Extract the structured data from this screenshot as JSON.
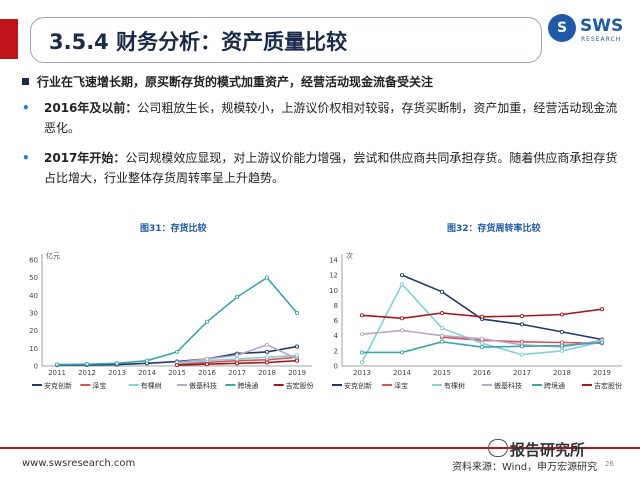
{
  "header": {
    "title": "3.5.4 财务分析：资产质量比较",
    "logo_text": "SWS",
    "logo_sub": "RESEARCH"
  },
  "bullets": {
    "headline": "行业在飞速增长期，原买断存货的模式加重资产，经营活动现金流备受关注",
    "item1_lead": "2016年及以前：",
    "item1_text": "公司粗放生长，规模较小，上游议价权相对较弱，存货买断制，资产加重，经营活动现金流恶化。",
    "item2_lead": "2017年开始：",
    "item2_text": "公司规模效应显现，对上游议价能力增强，尝试和供应商共同承担存货。随着供应商承担存货占比增大，行业整体存货周转率呈上升趋势。"
  },
  "colors": {
    "安克创新": "#1f3a68",
    "泽宝": "#d9534f",
    "有棵树": "#7fd3d8",
    "傲基科技": "#b9a6c9",
    "跨境通": "#3aa6b0",
    "吉宏股份": "#a3181e"
  },
  "chart_data": [
    {
      "type": "line",
      "title": "图31：存货比较",
      "ylabel": "亿元",
      "ylim": [
        0,
        60
      ],
      "yticks": [
        0,
        10,
        20,
        30,
        40,
        50,
        60
      ],
      "categories": [
        "2011",
        "2012",
        "2013",
        "2014",
        "2015",
        "2016",
        "2017",
        "2018",
        "2019"
      ],
      "series": [
        {
          "name": "安克创新",
          "values": [
            0.5,
            0.6,
            0.8,
            1.5,
            2.5,
            4,
            7,
            8,
            11
          ]
        },
        {
          "name": "泽宝",
          "values": [
            null,
            null,
            null,
            null,
            1.2,
            2,
            3,
            3.5,
            5
          ]
        },
        {
          "name": "有棵树",
          "values": [
            null,
            null,
            null,
            null,
            1.5,
            3,
            4,
            5,
            6
          ]
        },
        {
          "name": "傲基科技",
          "values": [
            null,
            null,
            null,
            null,
            2,
            4,
            6,
            12,
            4
          ]
        },
        {
          "name": "跨境通",
          "values": [
            0.8,
            1,
            1.5,
            3,
            8,
            25,
            39,
            50,
            30
          ]
        },
        {
          "name": "吉宏股份",
          "values": [
            null,
            null,
            null,
            null,
            0.5,
            1,
            1.5,
            2,
            3
          ]
        }
      ],
      "legend": [
        "安克创新",
        "泽宝",
        "有棵树",
        "傲基科技",
        "跨境通",
        "吉宏股份"
      ]
    },
    {
      "type": "line",
      "title": "图32：存货周转率比较",
      "ylabel": "次",
      "ylim": [
        0,
        14
      ],
      "yticks": [
        0,
        2,
        4,
        6,
        8,
        10,
        12,
        14
      ],
      "categories": [
        "2013",
        "2014",
        "2015",
        "2016",
        "2017",
        "2018",
        "2019"
      ],
      "series": [
        {
          "name": "安克创新",
          "values": [
            null,
            12,
            9.8,
            6.2,
            5.5,
            4.5,
            3.5
          ]
        },
        {
          "name": "泽宝",
          "values": [
            null,
            null,
            3.8,
            3.4,
            3.2,
            3.1,
            3.0
          ]
        },
        {
          "name": "有棵树",
          "values": [
            0.5,
            10.8,
            5,
            3.0,
            1.5,
            2.0,
            3.2
          ]
        },
        {
          "name": "傲基科技",
          "values": [
            4.2,
            4.7,
            4.0,
            3.6,
            2.8,
            2.5,
            3.4
          ]
        },
        {
          "name": "跨境通",
          "values": [
            1.8,
            1.8,
            3.2,
            2.5,
            2.6,
            2.7,
            3.1
          ]
        },
        {
          "name": "吉宏股份",
          "values": [
            6.7,
            6.3,
            7.0,
            6.5,
            6.6,
            6.8,
            7.5
          ]
        }
      ],
      "legend": [
        "安克创新",
        "泽宝",
        "有棵树",
        "傲基科技",
        "跨境通",
        "吉宏股份"
      ]
    }
  ],
  "footer": {
    "url": "www.swsresearch.com",
    "source": "资料来源：Wind，申万宏源研究",
    "page": "26",
    "watermark": "报告研究所"
  }
}
